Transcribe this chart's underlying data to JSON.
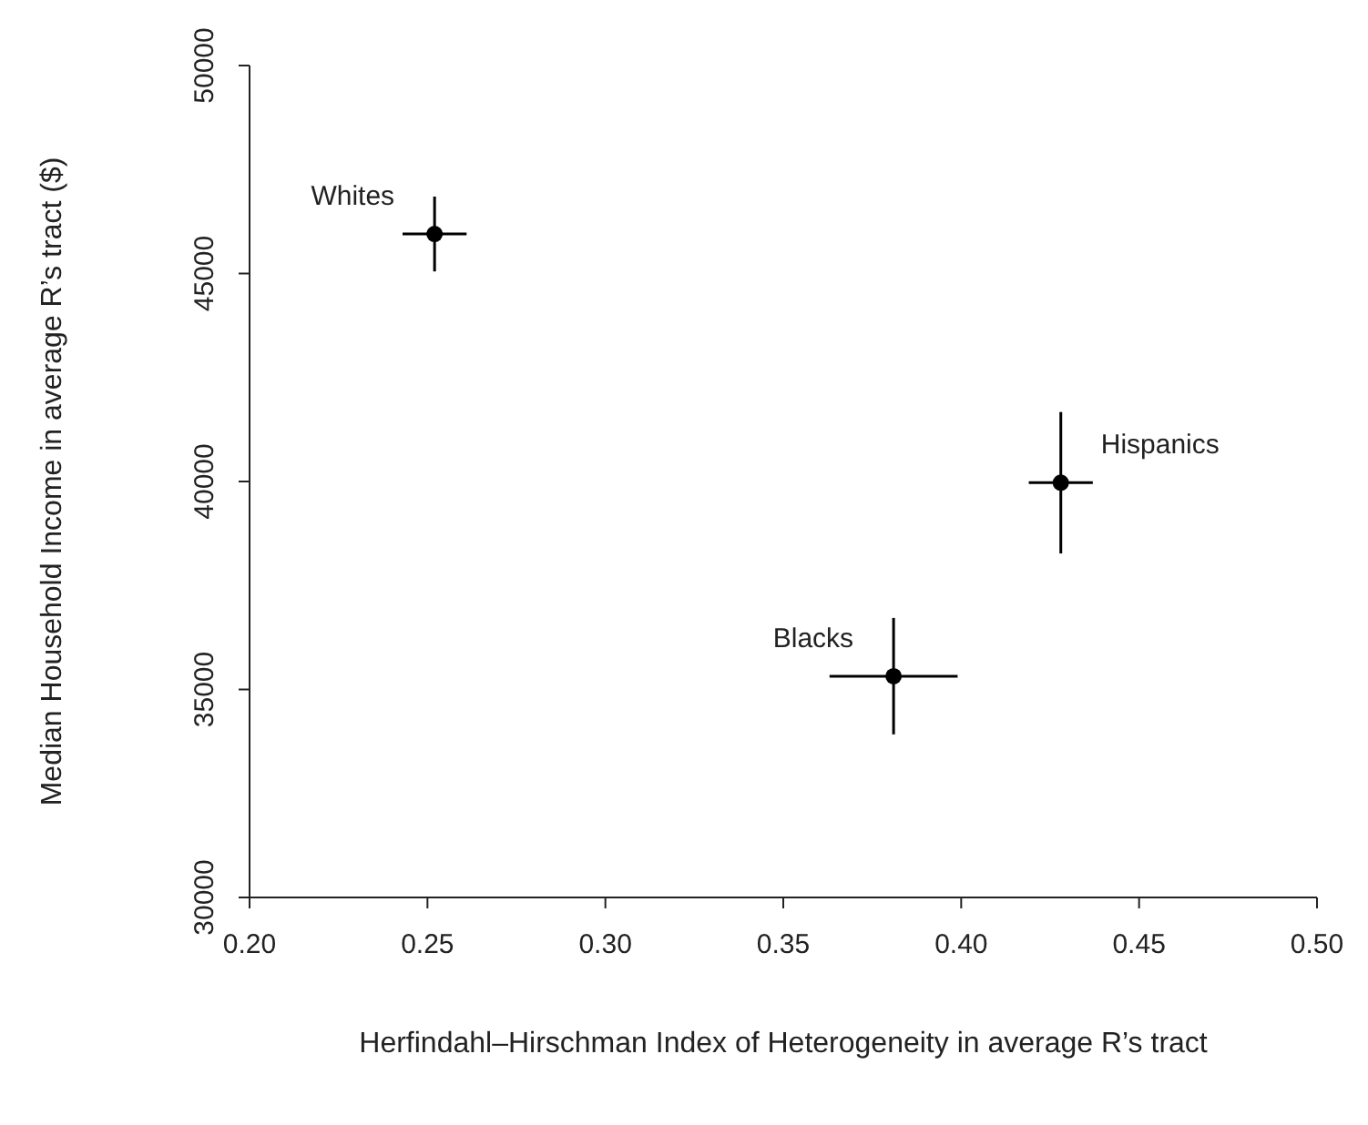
{
  "chart_data": {
    "type": "scatter",
    "xlabel": "Herfindahl–Hirschman Index of Heterogeneity in average R’s tract",
    "ylabel": "Median Household Income in average R’s tract ($)",
    "x": [
      0.252,
      0.381,
      0.428
    ],
    "values": [
      45950,
      35320,
      39970
    ],
    "errors": [
      900,
      1400,
      1700
    ],
    "xerrors": [
      0.009,
      0.018,
      0.009
    ],
    "color": "#000000",
    "marker": "circle",
    "xlim": [
      0.2,
      0.5
    ],
    "xticks": [
      {
        "value": 0.2,
        "label": "0.20"
      },
      0.25,
      {
        "value": 0.3,
        "label": "0.30"
      },
      0.35,
      {
        "value": 0.4,
        "label": "0.40"
      },
      0.45,
      {
        "value": 0.5,
        "label": "0.50"
      }
    ],
    "ylim": [
      30000,
      50000
    ],
    "yticks": [
      30000,
      35000,
      40000,
      45000,
      50000
    ],
    "grid": false,
    "legend": false,
    "annotations": [
      {
        "text": "Whites",
        "x": 0.252,
        "y": 45950
      },
      {
        "text": "Blacks",
        "x": 0.381,
        "y": 35320
      },
      {
        "text": "Hispanics",
        "x": 0.428,
        "y": 39970
      }
    ]
  }
}
